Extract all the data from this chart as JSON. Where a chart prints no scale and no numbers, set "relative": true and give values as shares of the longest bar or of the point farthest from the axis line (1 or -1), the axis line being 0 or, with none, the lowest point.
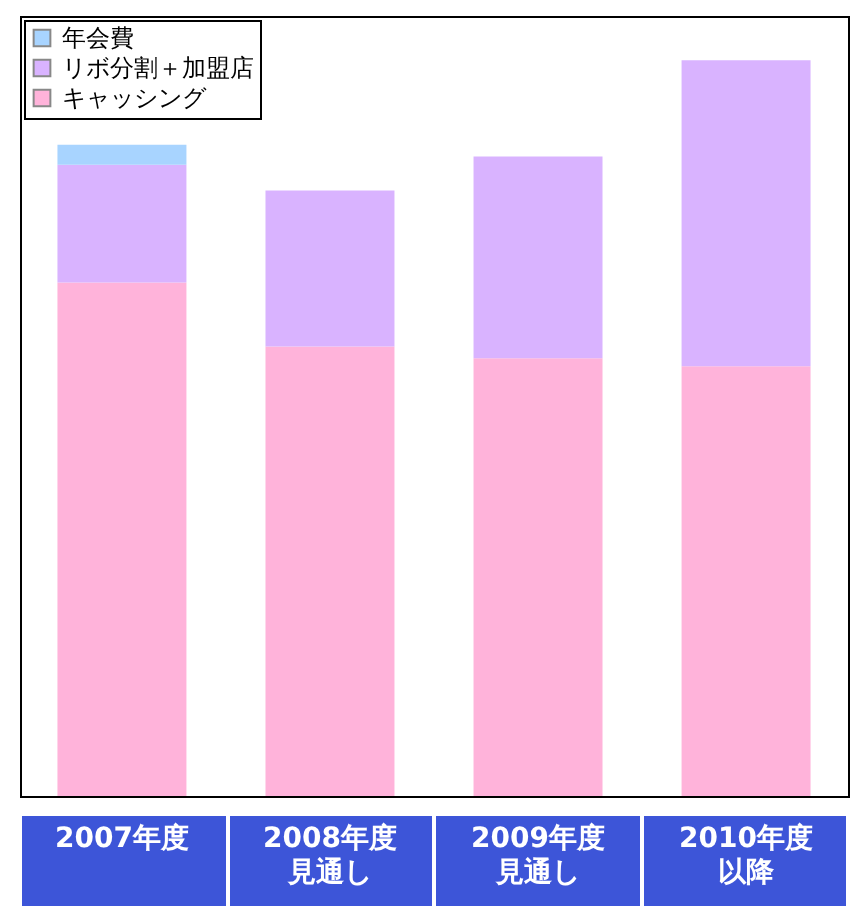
{
  "chart_data": {
    "type": "bar",
    "stacked": true,
    "relative": true,
    "legend": "top left",
    "categories": [
      "2007年度",
      "2008年度見通し",
      "2009年度見通し",
      "2010年度以降"
    ],
    "series": [
      {
        "name": "キャッシング",
        "color": "#ffb3da",
        "values": [
          0.698,
          0.611,
          0.595,
          0.584
        ]
      },
      {
        "name": "リボ分割＋加盟店",
        "color": "#d9b3ff",
        "values": [
          0.16,
          0.212,
          0.274,
          0.416
        ]
      },
      {
        "name": "年会費",
        "color": "#a8d4ff",
        "values": [
          0.027,
          null,
          null,
          null
        ]
      }
    ]
  }
}
